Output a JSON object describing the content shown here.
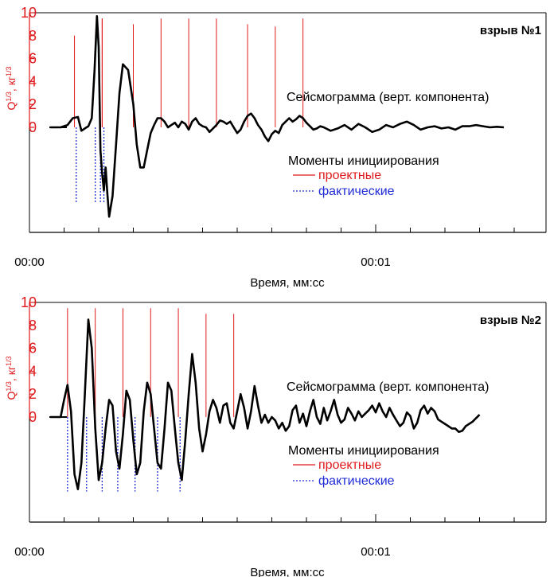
{
  "colors": {
    "trace": "#000000",
    "project_marks": "#e0191b",
    "actual_marks": "#1f2bd6",
    "left_axis": "#e0191b",
    "frame": "#000000"
  },
  "chart_data": [
    {
      "type": "line",
      "panel_label": "взрыв №1",
      "ylabel": "Q1/3, кг1/3",
      "ylabel_main": "Q",
      "ylabel_sup1": "1/3",
      "ylabel_mid": ", кг",
      "ylabel_sup2": "1/3",
      "xlabel": "Время, мм:сс",
      "xtick_labels": [
        {
          "t": 0,
          "label": "00:00"
        },
        {
          "t": 1,
          "label": "00:01"
        }
      ],
      "x_range_s": [
        0,
        1.46
      ],
      "ylim": [
        -9,
        10
      ],
      "y_ticks": [
        0,
        2,
        4,
        6,
        8,
        10
      ],
      "minor_x_tick_step_s": 0.1,
      "trace_label": "Сейсмограмма (верт. компонента)",
      "legend": {
        "title": "Моменты инициирования",
        "items": [
          {
            "label": "проектные",
            "style": "solid",
            "color": "#e0191b"
          },
          {
            "label": "фактические",
            "style": "dotted",
            "color": "#1f2bd6"
          }
        ]
      },
      "project_marks": [
        {
          "t": 0.13,
          "q": 8.0
        },
        {
          "t": 0.21,
          "q": 9.5
        },
        {
          "t": 0.21,
          "q": 9.5
        },
        {
          "t": 0.3,
          "q": 9.0
        },
        {
          "t": 0.38,
          "q": 9.5
        },
        {
          "t": 0.46,
          "q": 9.5
        },
        {
          "t": 0.54,
          "q": 9.5
        },
        {
          "t": 0.63,
          "q": 9.0
        },
        {
          "t": 0.71,
          "q": 8.8
        },
        {
          "t": 0.79,
          "q": 9.5
        }
      ],
      "actual_marks": [
        {
          "t": 0.135,
          "q": -6.6
        },
        {
          "t": 0.19,
          "q": -6.6
        },
        {
          "t": 0.205,
          "q": -6.6
        },
        {
          "t": 0.215,
          "q": -6.6
        }
      ],
      "trace": [
        [
          0.06,
          0
        ],
        [
          0.09,
          0
        ],
        [
          0.11,
          0.2
        ],
        [
          0.125,
          0.8
        ],
        [
          0.14,
          0.9
        ],
        [
          0.15,
          -0.3
        ],
        [
          0.16,
          -0.1
        ],
        [
          0.17,
          0.1
        ],
        [
          0.18,
          0.8
        ],
        [
          0.188,
          5
        ],
        [
          0.195,
          9.7
        ],
        [
          0.2,
          7
        ],
        [
          0.205,
          -2
        ],
        [
          0.21,
          -4
        ],
        [
          0.215,
          -5.5
        ],
        [
          0.22,
          -3.5
        ],
        [
          0.225,
          -5.8
        ],
        [
          0.23,
          -7.8
        ],
        [
          0.24,
          -6
        ],
        [
          0.25,
          -1.5
        ],
        [
          0.26,
          3
        ],
        [
          0.27,
          5.5
        ],
        [
          0.285,
          5
        ],
        [
          0.3,
          2
        ],
        [
          0.31,
          -1.5
        ],
        [
          0.32,
          -3.5
        ],
        [
          0.33,
          -3.5
        ],
        [
          0.34,
          -2
        ],
        [
          0.35,
          -0.5
        ],
        [
          0.36,
          0.2
        ],
        [
          0.37,
          0.8
        ],
        [
          0.38,
          0.8
        ],
        [
          0.39,
          0.5
        ],
        [
          0.4,
          0
        ],
        [
          0.41,
          0.2
        ],
        [
          0.42,
          0.4
        ],
        [
          0.43,
          0
        ],
        [
          0.44,
          0.5
        ],
        [
          0.45,
          0.3
        ],
        [
          0.46,
          -0.2
        ],
        [
          0.47,
          0.5
        ],
        [
          0.48,
          0.8
        ],
        [
          0.49,
          0.3
        ],
        [
          0.5,
          0.1
        ],
        [
          0.51,
          0
        ],
        [
          0.52,
          -0.4
        ],
        [
          0.53,
          -0.1
        ],
        [
          0.54,
          0.2
        ],
        [
          0.55,
          0.6
        ],
        [
          0.56,
          0.5
        ],
        [
          0.57,
          0.3
        ],
        [
          0.58,
          0.5
        ],
        [
          0.59,
          0
        ],
        [
          0.6,
          -0.5
        ],
        [
          0.61,
          -0.2
        ],
        [
          0.62,
          0.5
        ],
        [
          0.63,
          1
        ],
        [
          0.64,
          1.2
        ],
        [
          0.65,
          0.8
        ],
        [
          0.66,
          0.2
        ],
        [
          0.67,
          -0.2
        ],
        [
          0.68,
          -0.8
        ],
        [
          0.69,
          -1.2
        ],
        [
          0.7,
          -0.6
        ],
        [
          0.71,
          -0.3
        ],
        [
          0.72,
          -0.5
        ],
        [
          0.73,
          0.2
        ],
        [
          0.74,
          0.5
        ],
        [
          0.75,
          0.8
        ],
        [
          0.76,
          0.5
        ],
        [
          0.77,
          0.7
        ],
        [
          0.78,
          1
        ],
        [
          0.79,
          0.8
        ],
        [
          0.8,
          0.4
        ],
        [
          0.81,
          0.1
        ],
        [
          0.82,
          -0.2
        ],
        [
          0.83,
          -0.1
        ],
        [
          0.84,
          0.1
        ],
        [
          0.85,
          0
        ],
        [
          0.87,
          -0.3
        ],
        [
          0.89,
          -0.1
        ],
        [
          0.91,
          0.2
        ],
        [
          0.93,
          -0.2
        ],
        [
          0.95,
          0.3
        ],
        [
          0.97,
          0
        ],
        [
          0.99,
          -0.4
        ],
        [
          1.01,
          -0.2
        ],
        [
          1.03,
          0.2
        ],
        [
          1.05,
          0
        ],
        [
          1.07,
          0.3
        ],
        [
          1.09,
          0.5
        ],
        [
          1.11,
          0.2
        ],
        [
          1.13,
          -0.2
        ],
        [
          1.15,
          0
        ],
        [
          1.17,
          0.1
        ],
        [
          1.19,
          -0.1
        ],
        [
          1.21,
          0
        ],
        [
          1.23,
          -0.2
        ],
        [
          1.25,
          0.1
        ],
        [
          1.27,
          0.1
        ],
        [
          1.29,
          0.2
        ],
        [
          1.31,
          0.1
        ],
        [
          1.33,
          0
        ],
        [
          1.35,
          0.05
        ],
        [
          1.37,
          0
        ]
      ]
    },
    {
      "type": "line",
      "panel_label": "взрыв №2",
      "ylabel": "Q1/3, кг1/3",
      "ylabel_main": "Q",
      "ylabel_sup1": "1/3",
      "ylabel_mid": ", кг",
      "ylabel_sup2": "1/3",
      "xlabel": "Время, мм:сс",
      "xtick_labels": [
        {
          "t": 0,
          "label": "00:00"
        },
        {
          "t": 1,
          "label": "00:01"
        }
      ],
      "x_range_s": [
        0,
        1.46
      ],
      "ylim": [
        -9,
        10
      ],
      "y_ticks": [
        0,
        2,
        4,
        6,
        8,
        10
      ],
      "minor_x_tick_step_s": 0.1,
      "trace_label": "Сейсмограмма (верт. компонента)",
      "legend": {
        "title": "Моменты инициирования",
        "items": [
          {
            "label": "проектные",
            "style": "solid",
            "color": "#e0191b"
          },
          {
            "label": "фактические",
            "style": "dotted",
            "color": "#1f2bd6"
          }
        ]
      },
      "project_marks": [
        {
          "t": 0.11,
          "q": 9.5
        },
        {
          "t": 0.19,
          "q": 9.5
        },
        {
          "t": 0.27,
          "q": 9.5
        },
        {
          "t": 0.35,
          "q": 9.5
        },
        {
          "t": 0.43,
          "q": 9.5
        },
        {
          "t": 0.51,
          "q": 9.0
        },
        {
          "t": 0.59,
          "q": 9.0
        }
      ],
      "actual_marks": [
        {
          "t": 0.11,
          "q": -6.5
        },
        {
          "t": 0.165,
          "q": -6.5
        },
        {
          "t": 0.21,
          "q": -6.5
        },
        {
          "t": 0.255,
          "q": -6.5
        },
        {
          "t": 0.305,
          "q": -6.5
        },
        {
          "t": 0.37,
          "q": -6.5
        },
        {
          "t": 0.435,
          "q": -6.5
        }
      ],
      "trace": [
        [
          0.06,
          0
        ],
        [
          0.09,
          0
        ],
        [
          0.1,
          1.5
        ],
        [
          0.11,
          2.8
        ],
        [
          0.12,
          0.5
        ],
        [
          0.13,
          -5
        ],
        [
          0.14,
          -6.3
        ],
        [
          0.15,
          -4
        ],
        [
          0.16,
          2
        ],
        [
          0.17,
          8.5
        ],
        [
          0.18,
          6
        ],
        [
          0.19,
          -1
        ],
        [
          0.2,
          -5.5
        ],
        [
          0.21,
          -4
        ],
        [
          0.22,
          -1
        ],
        [
          0.23,
          1.5
        ],
        [
          0.24,
          1
        ],
        [
          0.25,
          -3
        ],
        [
          0.26,
          -4.5
        ],
        [
          0.27,
          -1.5
        ],
        [
          0.28,
          2.3
        ],
        [
          0.29,
          1.5
        ],
        [
          0.3,
          -2
        ],
        [
          0.31,
          -5
        ],
        [
          0.32,
          -4
        ],
        [
          0.33,
          0.5
        ],
        [
          0.34,
          3
        ],
        [
          0.35,
          2
        ],
        [
          0.36,
          -1
        ],
        [
          0.37,
          -4
        ],
        [
          0.38,
          -4.5
        ],
        [
          0.39,
          -1
        ],
        [
          0.4,
          3
        ],
        [
          0.41,
          2.3
        ],
        [
          0.42,
          -1
        ],
        [
          0.43,
          -4
        ],
        [
          0.44,
          -5.5
        ],
        [
          0.45,
          -2
        ],
        [
          0.46,
          2
        ],
        [
          0.47,
          5.5
        ],
        [
          0.48,
          3
        ],
        [
          0.49,
          -1
        ],
        [
          0.5,
          -3
        ],
        [
          0.51,
          -1.5
        ],
        [
          0.52,
          0.5
        ],
        [
          0.53,
          1.5
        ],
        [
          0.54,
          0.8
        ],
        [
          0.55,
          -0.5
        ],
        [
          0.56,
          1
        ],
        [
          0.57,
          1.2
        ],
        [
          0.58,
          -0.5
        ],
        [
          0.59,
          -1
        ],
        [
          0.6,
          0.5
        ],
        [
          0.61,
          2
        ],
        [
          0.62,
          0.8
        ],
        [
          0.63,
          -1
        ],
        [
          0.64,
          0.5
        ],
        [
          0.65,
          2.7
        ],
        [
          0.66,
          1
        ],
        [
          0.67,
          -0.5
        ],
        [
          0.68,
          0.2
        ],
        [
          0.69,
          -0.5
        ],
        [
          0.7,
          0
        ],
        [
          0.71,
          -0.3
        ],
        [
          0.72,
          -1
        ],
        [
          0.73,
          -0.5
        ],
        [
          0.74,
          -1.2
        ],
        [
          0.75,
          -0.8
        ],
        [
          0.76,
          0.6
        ],
        [
          0.77,
          1
        ],
        [
          0.78,
          -0.5
        ],
        [
          0.79,
          0.3
        ],
        [
          0.8,
          -0.8
        ],
        [
          0.81,
          0.5
        ],
        [
          0.82,
          1.5
        ],
        [
          0.83,
          0
        ],
        [
          0.84,
          -0.6
        ],
        [
          0.85,
          0.8
        ],
        [
          0.86,
          -0.3
        ],
        [
          0.87,
          0.5
        ],
        [
          0.88,
          1.5
        ],
        [
          0.89,
          0.2
        ],
        [
          0.9,
          -0.5
        ],
        [
          0.91,
          -0.2
        ],
        [
          0.92,
          0.8
        ],
        [
          0.93,
          0.3
        ],
        [
          0.94,
          -0.3
        ],
        [
          0.95,
          0.5
        ],
        [
          0.96,
          0
        ],
        [
          0.97,
          0.3
        ],
        [
          0.98,
          0.6
        ],
        [
          0.99,
          1
        ],
        [
          1,
          0.4
        ],
        [
          1.01,
          1.2
        ],
        [
          1.02,
          0.5
        ],
        [
          1.03,
          0
        ],
        [
          1.04,
          0.8
        ],
        [
          1.05,
          0.2
        ],
        [
          1.06,
          -0.3
        ],
        [
          1.07,
          -0.8
        ],
        [
          1.08,
          -0.5
        ],
        [
          1.09,
          0.4
        ],
        [
          1.1,
          0.1
        ],
        [
          1.11,
          -1
        ],
        [
          1.12,
          -0.5
        ],
        [
          1.13,
          0.6
        ],
        [
          1.14,
          1
        ],
        [
          1.15,
          0.3
        ],
        [
          1.16,
          0.8
        ],
        [
          1.17,
          0.5
        ],
        [
          1.18,
          -0.2
        ],
        [
          1.19,
          -0.4
        ],
        [
          1.2,
          -0.6
        ],
        [
          1.21,
          -0.8
        ],
        [
          1.22,
          -1
        ],
        [
          1.23,
          -1
        ],
        [
          1.24,
          -1.3
        ],
        [
          1.25,
          -1.2
        ],
        [
          1.26,
          -0.8
        ],
        [
          1.27,
          -0.6
        ],
        [
          1.28,
          -0.4
        ],
        [
          1.29,
          -0.1
        ],
        [
          1.3,
          0.2
        ]
      ]
    }
  ]
}
